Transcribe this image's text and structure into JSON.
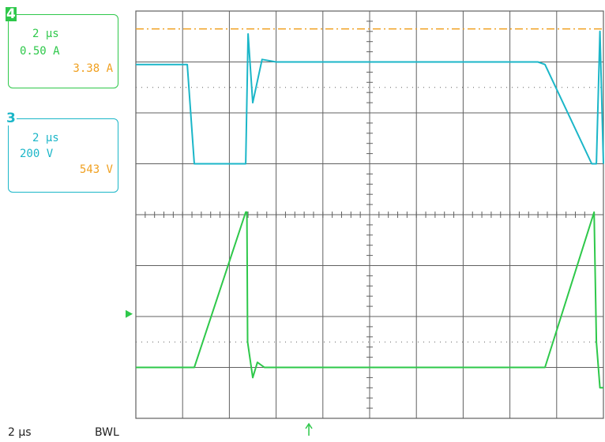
{
  "channel4": {
    "number": "4",
    "timebase": "2 µs",
    "scale": "0.50 A",
    "offset": "3.38 A"
  },
  "channel3": {
    "number": "3",
    "timebase": "2 µs",
    "scale": "200 V",
    "offset": "543 V"
  },
  "footer": {
    "timebase": "2 µs",
    "bandwidth_limit": "BWL"
  },
  "colors": {
    "ch3": "#1bb6c8",
    "ch4": "#2ec84a",
    "reference": "#f0a020",
    "grid": "#606060"
  },
  "chart_data": {
    "type": "line",
    "title": "",
    "xlabel": "",
    "ylabel": "",
    "x_unit": "µs",
    "xlim": [
      0,
      20
    ],
    "grid": true,
    "series": [
      {
        "name": "",
        "channel": "3",
        "unit": "V",
        "scale_per_div": 200,
        "x": [
          0,
          2.2,
          2.5,
          4.7,
          4.8,
          5.0,
          5.4,
          6.0,
          17.2,
          17.5,
          19.5,
          19.7,
          19.85,
          20
        ],
        "y_div": [
          6.95,
          6.95,
          5.0,
          5.0,
          7.55,
          6.2,
          7.05,
          7.0,
          7.0,
          6.95,
          5.0,
          5.0,
          7.6,
          5.0
        ]
      },
      {
        "name": "",
        "channel": "4",
        "unit": "A",
        "scale_per_div": 0.5,
        "x": [
          0,
          2.5,
          4.7,
          4.75,
          4.78,
          5.0,
          5.2,
          5.5,
          17.5,
          19.6,
          19.7,
          19.85,
          20
        ],
        "y_div": [
          1.0,
          1.0,
          4.05,
          4.05,
          1.5,
          0.8,
          1.1,
          1.0,
          1.0,
          4.05,
          1.5,
          0.6,
          0.6
        ]
      }
    ],
    "reference_level_div": 7.65,
    "trigger_level_div": 2.05,
    "trigger_position_div": 3.7
  }
}
